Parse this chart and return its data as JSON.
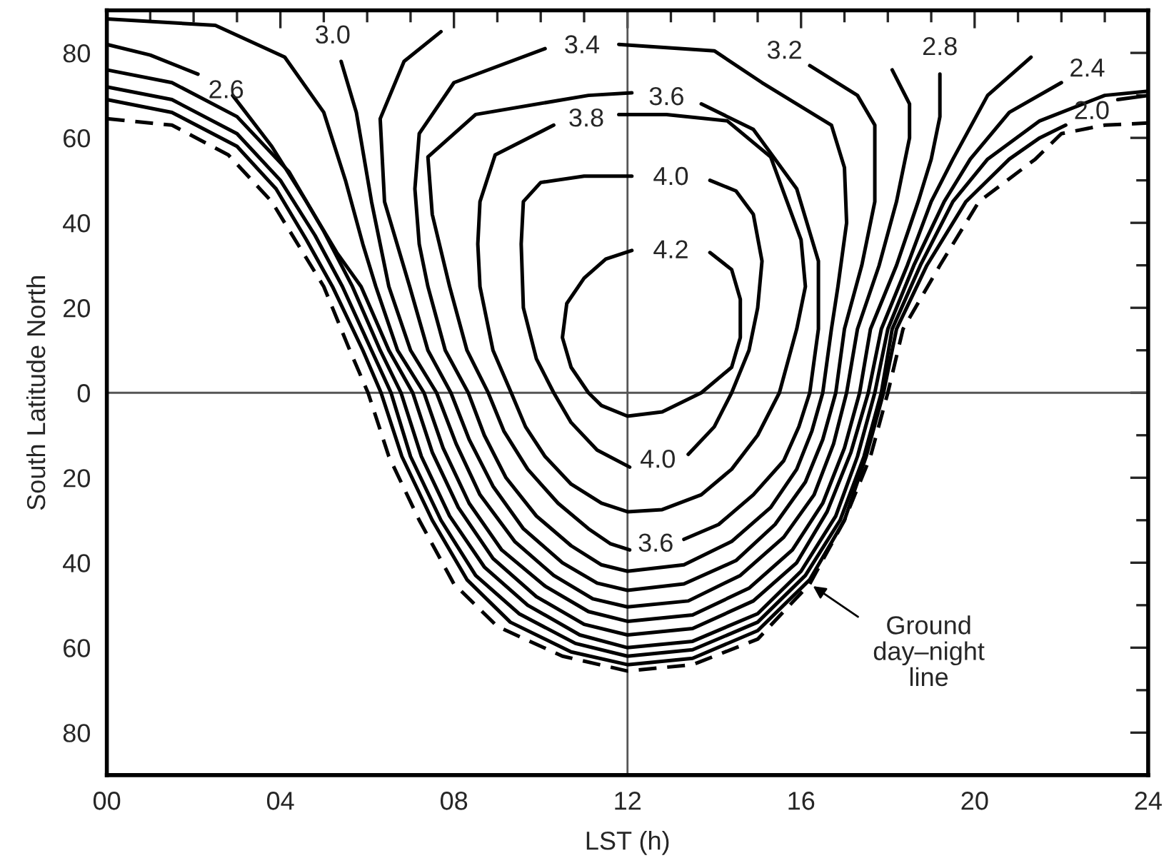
{
  "chart_data": {
    "type": "line",
    "xlabel": "LST (h)",
    "ylabel": "South Latitude North",
    "xlim": [
      0,
      24
    ],
    "ylim": [
      -90,
      90
    ],
    "xticks": [
      {
        "value": 0,
        "label": "00"
      },
      {
        "value": 1,
        "label": null
      },
      {
        "value": 2,
        "label": null
      },
      {
        "value": 3,
        "label": null
      },
      {
        "value": 4,
        "label": "04"
      },
      {
        "value": 5,
        "label": null
      },
      {
        "value": 6,
        "label": null
      },
      {
        "value": 7,
        "label": null
      },
      {
        "value": 8,
        "label": "08"
      },
      {
        "value": 9,
        "label": null
      },
      {
        "value": 10,
        "label": null
      },
      {
        "value": 11,
        "label": null
      },
      {
        "value": 12,
        "label": "12"
      },
      {
        "value": 13,
        "label": null
      },
      {
        "value": 14,
        "label": null
      },
      {
        "value": 15,
        "label": null
      },
      {
        "value": 16,
        "label": "16"
      },
      {
        "value": 17,
        "label": null
      },
      {
        "value": 18,
        "label": null
      },
      {
        "value": 19,
        "label": null
      },
      {
        "value": 20,
        "label": "20"
      },
      {
        "value": 21,
        "label": null
      },
      {
        "value": 22,
        "label": null
      },
      {
        "value": 23,
        "label": null
      },
      {
        "value": 24,
        "label": "24"
      }
    ],
    "yticks": [
      {
        "value": -80,
        "label": "80"
      },
      {
        "value": -70,
        "label": null
      },
      {
        "value": -60,
        "label": "60"
      },
      {
        "value": -50,
        "label": null
      },
      {
        "value": -40,
        "label": "40"
      },
      {
        "value": -30,
        "label": null
      },
      {
        "value": -20,
        "label": "20"
      },
      {
        "value": -10,
        "label": null
      },
      {
        "value": 0,
        "label": "0"
      },
      {
        "value": 10,
        "label": null
      },
      {
        "value": 20,
        "label": "20"
      },
      {
        "value": 30,
        "label": null
      },
      {
        "value": 40,
        "label": "40"
      },
      {
        "value": 50,
        "label": null
      },
      {
        "value": 60,
        "label": "60"
      },
      {
        "value": 70,
        "label": null
      },
      {
        "value": 80,
        "label": "80"
      }
    ],
    "ref_lines": [
      {
        "axis": "x",
        "value": 12,
        "label": null,
        "color": "#555555"
      },
      {
        "axis": "y",
        "value": 0,
        "label": null,
        "color": "#555555"
      }
    ],
    "grid": false,
    "series": [
      {
        "color": "#000000",
        "line_style": "dashed",
        "x": [
          0,
          1.5,
          2.8,
          3.8,
          4.4,
          5.0,
          5.6,
          6.02,
          6.5,
          7.2,
          8.0,
          9.0,
          10.5,
          12,
          13.5,
          15,
          16.2,
          17.0,
          17.6,
          18.0,
          18.35,
          19.2,
          20.1,
          21.4,
          22.0,
          23,
          24
        ],
        "values": [
          64.5,
          63,
          56,
          45,
          35,
          25,
          10,
          0,
          -15,
          -30,
          -45,
          -55,
          -62,
          -65.5,
          -64,
          -58,
          -45,
          -30,
          -15,
          0,
          15,
          30,
          45,
          55,
          61,
          63,
          63.5
        ]
      },
      {
        "name": "2.0",
        "color": "#000000",
        "line_style": "solid",
        "x": [
          0,
          1.5,
          3.0,
          3.9,
          4.6,
          5.2,
          5.9,
          6.32,
          6.8,
          7.5,
          8.3,
          9.3,
          10.7,
          12,
          13.5,
          15,
          16.2,
          17.0,
          17.5,
          17.9,
          18.2,
          18.9,
          19.8,
          20.8,
          21.5,
          22.1,
          22.7,
          23.3,
          24
        ],
        "values": [
          69,
          66,
          58,
          48,
          36,
          25,
          10,
          0,
          -15,
          -30,
          -44,
          -54,
          -61,
          -64,
          -62.5,
          -56,
          -44,
          -30,
          -15,
          0,
          15,
          30,
          45,
          55,
          60,
          63,
          null,
          69,
          70
        ]
      },
      {
        "color": "#000000",
        "line_style": "solid",
        "x": [
          0,
          1.5,
          3.0,
          4.0,
          4.8,
          5.43,
          6.1,
          6.55,
          7.0,
          7.7,
          8.5,
          9.5,
          10.8,
          12,
          13.5,
          15,
          16.1,
          16.9,
          17.45,
          17.85,
          18.1,
          18.75,
          19.5,
          20.3,
          21.5,
          23,
          24
        ],
        "values": [
          72,
          69,
          61,
          50,
          37,
          25,
          10,
          0,
          -15,
          -30,
          -43,
          -52,
          -59,
          -62,
          -60.5,
          -54,
          -43,
          -30,
          -15,
          0,
          15,
          30,
          45,
          55,
          64,
          70,
          71
        ]
      },
      {
        "name": "2.4",
        "color": "#000000",
        "line_style": "solid",
        "x": [
          22.0,
          20.8,
          19.9,
          19.3,
          18.6,
          18.0,
          17.7,
          17.3,
          16.8,
          16,
          15,
          13.5,
          12,
          10.9,
          9.7,
          8.7,
          7.9,
          7.25,
          6.78,
          6.3,
          5.66,
          5.0,
          4.2,
          3.0,
          1.5,
          0
        ],
        "values": [
          73,
          66,
          55,
          45,
          30,
          15,
          0,
          -15,
          -29,
          -42,
          -52,
          -58.5,
          -60,
          -57,
          -50,
          -41,
          -29,
          -15,
          0,
          10,
          25,
          38,
          52,
          65,
          73,
          76
        ]
      },
      {
        "name": "2.6",
        "color": "#000000",
        "line_style": "solid",
        "x": [
          0,
          1.0,
          2.1,
          2.75,
          2.9,
          3.8,
          4.6,
          5.3,
          5.86,
          6.5,
          7.05,
          7.5,
          8.1,
          8.9,
          9.9,
          11,
          12,
          13.5,
          14.9,
          15.9,
          16.6,
          17.15,
          17.55,
          17.85,
          18.45,
          19.0,
          19.5,
          20.3,
          21.3
        ],
        "values": [
          82,
          79.5,
          75,
          null,
          70,
          58,
          45,
          33,
          25,
          10,
          0,
          -14,
          -27,
          -39,
          -48,
          -54.5,
          -57,
          -55.5,
          -49,
          -40,
          -28,
          -14,
          0,
          15,
          30,
          45,
          55,
          70,
          79
        ]
      },
      {
        "name": "2.8",
        "color": "#000000",
        "line_style": "solid",
        "x": [
          19.2,
          19.2,
          19.0,
          18.7,
          18.2,
          17.6,
          17.35,
          17.0,
          16.5,
          15.8,
          14.8,
          13.5,
          12,
          11.1,
          10.1,
          9.1,
          8.35,
          7.75,
          7.31,
          6.7,
          6.2,
          5.9,
          5.5,
          5.0,
          4.1,
          2.5,
          0
        ],
        "values": [
          75,
          65,
          55,
          45,
          30,
          15,
          0,
          -13,
          -26,
          -37,
          -46,
          -52.3,
          -53.8,
          -51.5,
          -45.5,
          -37,
          -26,
          -13,
          0,
          10,
          25,
          35,
          50,
          66,
          79,
          86.5,
          88
        ]
      },
      {
        "name": "3.0",
        "color": "#000000",
        "line_style": "solid",
        "x": [
          5.4,
          5.75,
          6.1,
          6.5,
          7.0,
          7.6,
          8.05,
          8.6,
          9.4,
          10.3,
          11.2,
          12,
          13.4,
          14.6,
          15.6,
          16.3,
          16.75,
          17.05,
          17.3,
          17.8,
          18.2,
          18.5,
          18.5,
          18.1
        ],
        "values": [
          78,
          66,
          45,
          25,
          10,
          0,
          -12,
          -24,
          -35,
          -43,
          -48.5,
          -50.4,
          -49,
          -43,
          -34,
          -24,
          -12,
          0,
          15,
          30,
          45,
          60,
          68,
          76
        ]
      },
      {
        "name": "3.2",
        "color": "#000000",
        "line_style": "solid",
        "x": [
          16.2,
          17.3,
          17.7,
          17.7,
          17.4,
          17.0,
          16.8,
          16.5,
          16.1,
          15.4,
          14.5,
          13.3,
          12,
          11.3,
          10.5,
          9.6,
          8.9,
          8.35,
          7.93,
          7.4,
          6.98,
          6.4,
          6.3,
          6.85,
          7.7
        ],
        "values": [
          77,
          70,
          63,
          45,
          30,
          15,
          0,
          -11,
          -21,
          -31,
          -39.5,
          -45,
          -46.5,
          -44.8,
          -40,
          -32,
          -22,
          -11,
          0,
          10,
          25,
          45,
          64.5,
          78,
          85
        ]
      },
      {
        "name": "3.4",
        "color": "#000000",
        "line_style": "solid",
        "x": [
          10.1,
          8.0,
          7.2,
          7.1,
          7.2,
          7.4,
          7.8,
          8.33,
          8.7,
          9.2,
          9.9,
          10.7,
          11.4,
          12,
          13.3,
          14.4,
          15.3,
          15.9,
          16.25,
          16.5,
          16.7,
          16.85,
          17.05,
          17.0,
          16.7,
          15.1,
          14.0,
          11.8
        ],
        "values": [
          81,
          73,
          61,
          48,
          35,
          25,
          10,
          0,
          -10,
          -20,
          -29,
          -36,
          -40.5,
          -42,
          -40.5,
          -35,
          -27,
          -18,
          -9,
          0,
          15,
          25,
          40,
          53,
          63,
          73,
          80.5,
          82
        ]
      },
      {
        "name": "3.6",
        "color": "#000000",
        "line_style": "solid",
        "x": [
          12.1,
          11.1,
          8.5,
          7.4,
          7.5,
          7.9,
          8.3,
          8.79,
          9.15,
          9.7,
          10.4,
          11.1,
          11.6,
          12.05,
          12.65,
          13.3,
          14.1,
          14.9,
          15.6,
          15.95,
          16.2,
          16.4,
          16.4,
          15.9,
          14.9,
          13.7
        ],
        "values": [
          70.6,
          70,
          65.5,
          55.5,
          42,
          25,
          10,
          0,
          -9,
          -18,
          -26,
          -32,
          -35.5,
          -37,
          null,
          -34.5,
          -31,
          -24,
          -16,
          -8,
          0,
          15,
          31,
          48,
          62,
          68
        ]
      },
      {
        "name": "3.8",
        "color": "#000000",
        "line_style": "solid",
        "x": [
          10.3,
          8.95,
          8.6,
          8.55,
          8.6,
          8.9,
          9.32,
          9.65,
          10.1,
          10.7,
          11.4,
          12,
          12.8,
          13.7,
          14.4,
          15.0,
          15.5,
          15.9,
          16.1,
          16.0,
          15.3,
          14.3,
          12.9,
          11.8
        ],
        "values": [
          63,
          56,
          45,
          35,
          25,
          10,
          0,
          -8,
          -15,
          -21.5,
          -26,
          -28,
          -27.5,
          -24,
          -18,
          -10,
          0,
          15,
          25,
          36,
          55.5,
          64,
          65.5,
          65.5
        ]
      },
      {
        "name": "4.0",
        "color": "#000000",
        "line_style": "solid",
        "x": [
          12.1,
          11,
          10,
          9.6,
          9.55,
          9.6,
          9.9,
          10.3,
          10.7,
          11.3,
          12.05,
          12.7,
          13.4,
          14.0,
          14.4,
          14.8,
          15.0,
          15.1,
          14.9,
          14.5,
          13.9
        ],
        "values": [
          51,
          51,
          49.5,
          45,
          35,
          20,
          8,
          0,
          -7,
          -13.5,
          -17.5,
          null,
          -14.5,
          -8,
          0,
          10,
          20,
          31,
          42,
          47.5,
          50
        ]
      },
      {
        "name": "4.2",
        "color": "#000000",
        "line_style": "solid",
        "x": [
          13.9,
          14.4,
          14.6,
          14.6,
          14.4,
          13.7,
          12.8,
          12,
          11.4,
          11.1,
          10.7,
          10.5,
          10.6,
          11.0,
          11.5,
          12.1
        ],
        "values": [
          33,
          29,
          22,
          13,
          6,
          0,
          -4.5,
          -5.5,
          -3,
          0,
          6,
          13,
          21,
          27,
          31.5,
          33.5
        ]
      }
    ],
    "annotations": [
      {
        "text": "Ground\nday–night\nline",
        "x": 16.2,
        "y": -45
      }
    ]
  }
}
